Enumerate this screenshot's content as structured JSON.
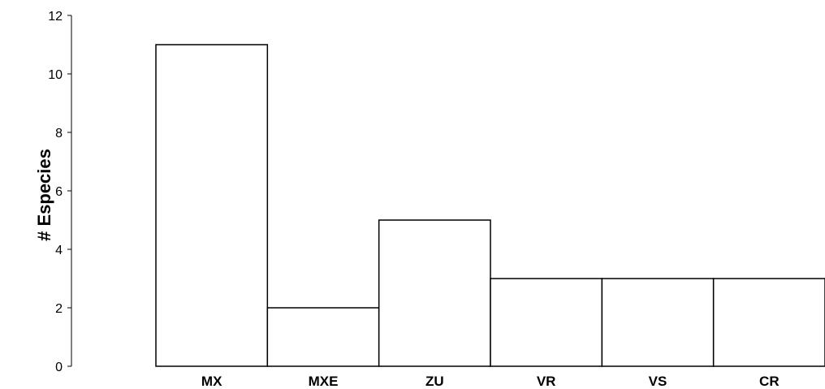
{
  "chart_data": {
    "type": "bar",
    "categories": [
      "MX",
      "MXE",
      "ZU",
      "VR",
      "VS",
      "CR"
    ],
    "values": [
      11,
      2,
      5,
      3,
      3,
      3
    ],
    "title": "",
    "xlabel": "",
    "ylabel": "# Especies",
    "ylim": [
      0,
      12
    ],
    "yticks": [
      0,
      2,
      4,
      6,
      8,
      10,
      12
    ],
    "grid": false,
    "bar_fill": "#ffffff",
    "bar_stroke": "#000000"
  }
}
